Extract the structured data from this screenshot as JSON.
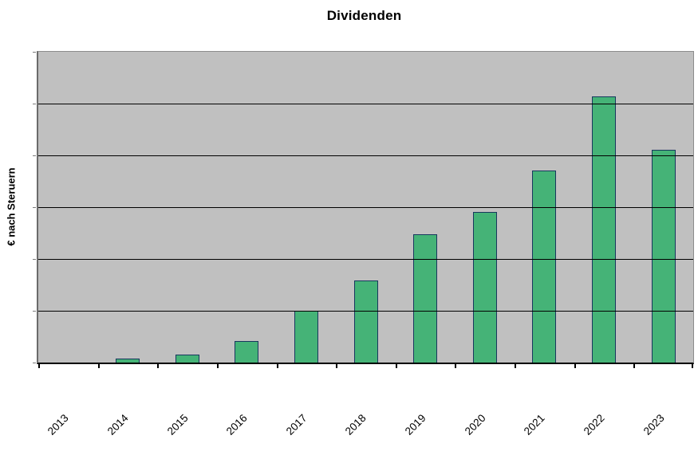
{
  "chart_data": {
    "type": "bar",
    "title": "Dividenden",
    "xlabel": "",
    "ylabel": "€ nach Steruern",
    "categories": [
      "2013",
      "2014",
      "2015",
      "2016",
      "2017",
      "2018",
      "2019",
      "2020",
      "2021",
      "2022",
      "2023"
    ],
    "values": [
      0,
      0.08,
      0.15,
      0.41,
      1.0,
      1.58,
      2.48,
      2.91,
      3.7,
      5.14,
      4.11
    ],
    "values_unit": "relative gridline intervals (value axis shows no numeric labels)",
    "ylim": [
      0,
      6
    ],
    "gridline_count_intervals": 6,
    "grid": "horizontal, drawn over bars",
    "legend": false,
    "x_label_rotation_deg": 45,
    "colors": {
      "bar_fill": "#45B377",
      "bar_border": "#17375E",
      "plot_background": "#C0C0C0",
      "gridline": "#000000",
      "axis": "#000000",
      "text": "#000000",
      "page_background": "#FFFFFF"
    }
  }
}
